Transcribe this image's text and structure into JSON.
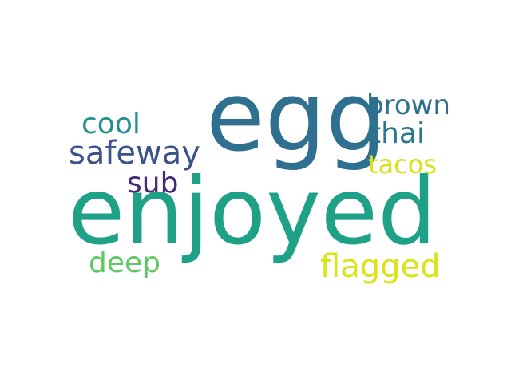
{
  "words": [
    {
      "text": "egg",
      "color": "#2f6f8f"
    },
    {
      "text": "enjoyed",
      "color": "#1fa187"
    },
    {
      "text": "brown",
      "color": "#2d708e"
    },
    {
      "text": "thai",
      "color": "#2a788e"
    },
    {
      "text": "cool",
      "color": "#21908d"
    },
    {
      "text": "safeway",
      "color": "#3b528b"
    },
    {
      "text": "tacos",
      "color": "#d8e219"
    },
    {
      "text": "sub",
      "color": "#482878"
    },
    {
      "text": "deep",
      "color": "#5ec962"
    },
    {
      "text": "flagged",
      "color": "#dde318"
    }
  ]
}
